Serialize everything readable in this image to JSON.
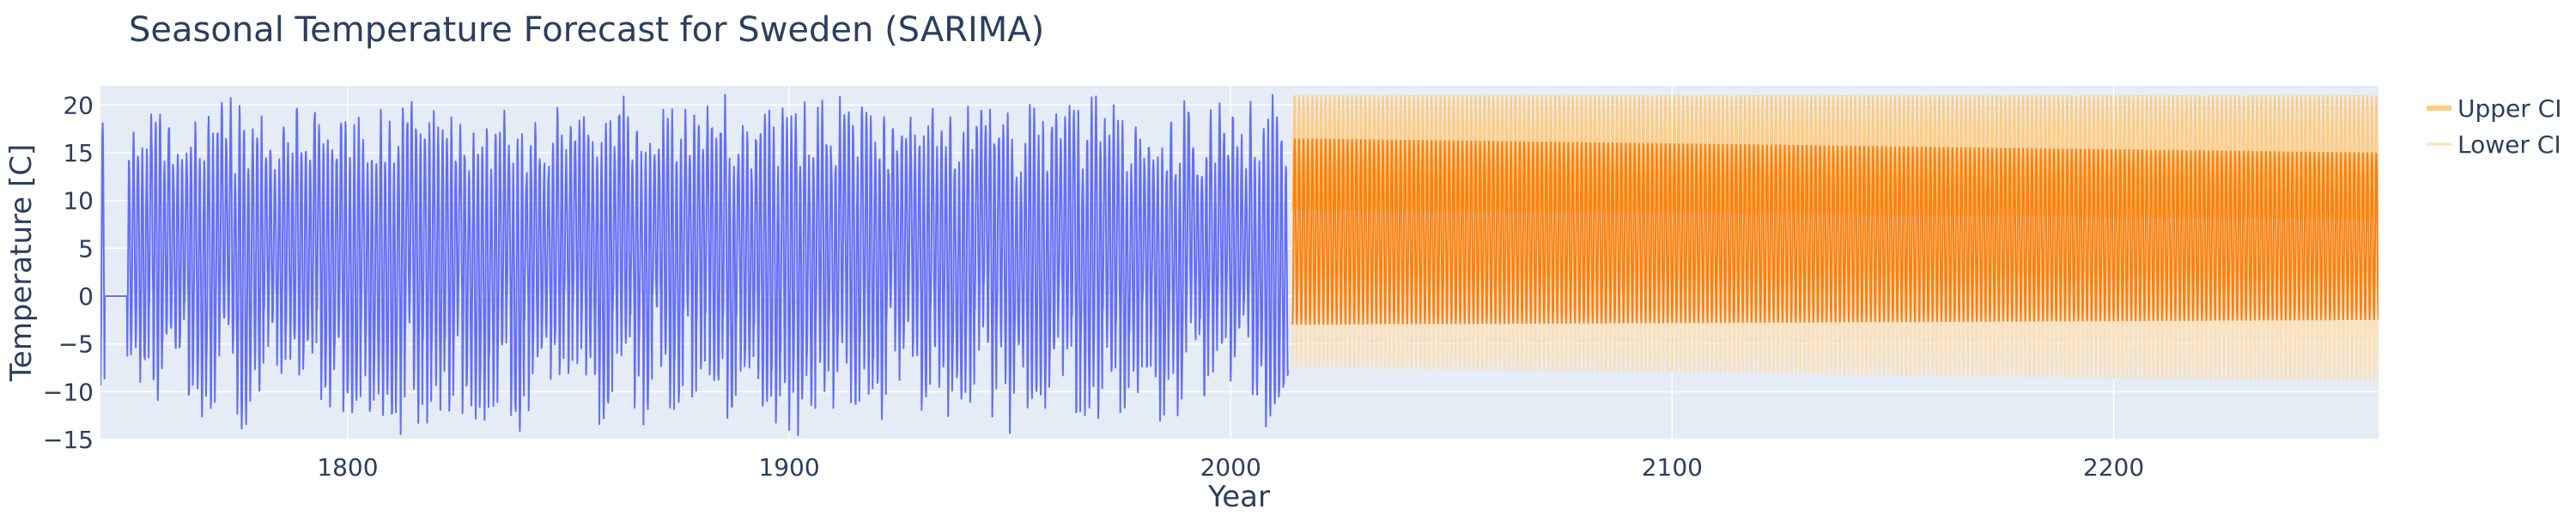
{
  "chart_data": {
    "type": "line",
    "title": "Seasonal Temperature Forecast for Sweden (SARIMA)",
    "xlabel": "Year",
    "ylabel": "Temperature [C]",
    "xlim": [
      1744,
      2260
    ],
    "ylim": [
      -15,
      22
    ],
    "x_ticks": [
      1800,
      1900,
      2000,
      2100,
      2200
    ],
    "y_ticks": [
      -15,
      -10,
      -5,
      0,
      5,
      10,
      15,
      20
    ],
    "grid": true,
    "legend_position": "right",
    "series": [
      {
        "name": "",
        "color": "#636efa",
        "sampling": "monthly",
        "x_start": 1744,
        "x_end": 2013,
        "flat_segment": {
          "x": [
            1745,
            1750
          ],
          "y": 0
        },
        "seasonal_mean": 5.5,
        "summer_peak_range": [
          13,
          20
        ],
        "winter_trough_range": [
          -13.5,
          -1
        ],
        "min_value": -13.5,
        "max_value": 20
      },
      {
        "name": "",
        "color": "#ff7f0e",
        "sampling": "monthly",
        "x_start": 2014,
        "x_end": 2260,
        "peak_start": 16.5,
        "peak_end": 15,
        "trough_start": -3,
        "trough_end": -2.5
      },
      {
        "name": "Upper CI",
        "color": "#ffcc80",
        "sampling": "monthly",
        "x_start": 2014,
        "x_end": 2260,
        "peak_start": 21,
        "peak_end": 21,
        "trough_start": 9,
        "trough_end": 8
      },
      {
        "name": "Lower CI",
        "color": "#ffe0b2",
        "sampling": "monthly",
        "x_start": 2014,
        "x_end": 2260,
        "peak_start": 12,
        "peak_end": 9,
        "trough_start": -7.5,
        "trough_end": -9
      }
    ]
  }
}
